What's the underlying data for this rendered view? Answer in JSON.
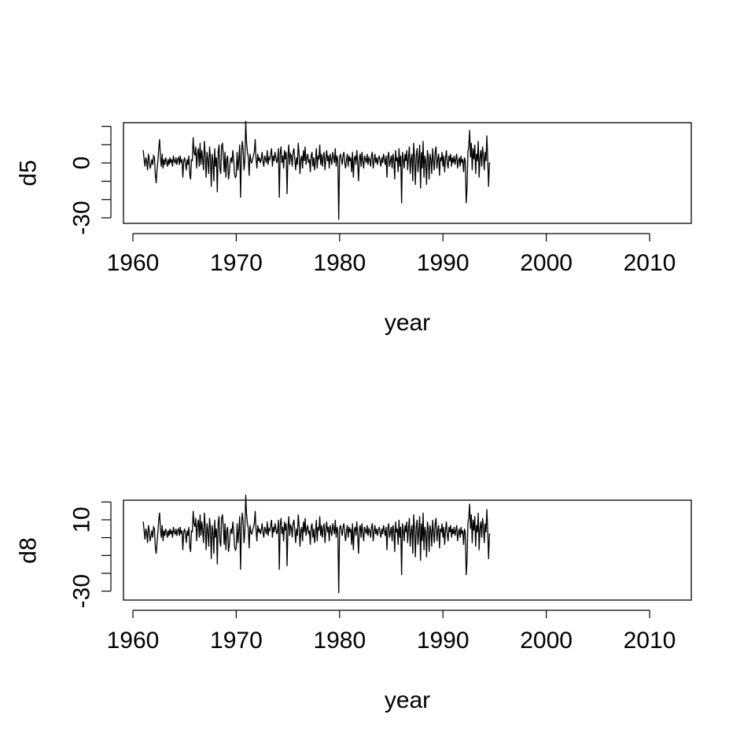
{
  "chart_data": [
    {
      "type": "line",
      "ylabel": "d5",
      "xlabel": "year",
      "xlim": [
        1961,
        2012
      ],
      "ylim": [
        -33,
        22
      ],
      "x_ticks": [
        1960,
        1970,
        1980,
        1990,
        2000,
        2010
      ],
      "y_ticks": [
        -30,
        -20,
        -10,
        0,
        10,
        20
      ],
      "y_tick_labels": [
        "-30",
        "",
        "",
        "0",
        "",
        ""
      ],
      "start_year": 1961.0,
      "step": 0.0833333,
      "values": [
        7,
        2,
        -2,
        3,
        1,
        -4,
        5,
        2,
        -3,
        -1,
        2,
        -1,
        4,
        3,
        -6,
        -11,
        -4,
        1,
        8,
        13,
        3,
        -2,
        5,
        -3,
        2,
        -1,
        3,
        1,
        -2,
        2,
        -1,
        3,
        0,
        2,
        -2,
        4,
        1,
        0,
        3,
        -1,
        2,
        3,
        -1,
        4,
        0,
        2,
        -8,
        1,
        3,
        0,
        -4,
        2,
        -1,
        4,
        -6,
        -9,
        2,
        1,
        14,
        6,
        4,
        9,
        -3,
        5,
        8,
        -2,
        11,
        -1,
        7,
        2,
        -4,
        12,
        4,
        -8,
        6,
        2,
        -6,
        9,
        3,
        -13,
        5,
        1,
        -10,
        8,
        -2,
        3,
        -16,
        6,
        10,
        -3,
        -6,
        9,
        11,
        4,
        -5,
        6,
        -8,
        2,
        4,
        -9,
        -5,
        1,
        3,
        0,
        7,
        2,
        -6,
        -8,
        -7,
        6,
        -4,
        2,
        10,
        -19,
        4,
        12,
        7,
        -4,
        1,
        23,
        11,
        6,
        3,
        -7,
        5,
        1,
        0,
        2,
        4,
        6,
        13,
        2,
        -3,
        5,
        1,
        3,
        0,
        2,
        6,
        1,
        -2,
        4,
        2,
        0,
        7,
        -1,
        3,
        2,
        5,
        8,
        -2,
        4,
        1,
        6,
        3,
        0,
        2,
        8,
        -19,
        5,
        9,
        0,
        4,
        -3,
        7,
        2,
        6,
        -17,
        3,
        10,
        -1,
        5,
        4,
        -2,
        6,
        8,
        2,
        -4,
        3,
        -1,
        11,
        5,
        -6,
        2,
        4,
        -3,
        7,
        1,
        9,
        -1,
        3,
        5,
        0,
        2,
        -5,
        4,
        6,
        -2,
        3,
        -4,
        1,
        8,
        -3,
        4,
        2,
        10,
        -1,
        5,
        -2,
        3,
        6,
        -4,
        2,
        7,
        1,
        4,
        -3,
        5,
        2,
        -1,
        6,
        3,
        0,
        8,
        -2,
        4,
        1,
        -31,
        3,
        5,
        2,
        -1,
        4,
        6,
        0,
        -3,
        2,
        5,
        -2,
        4,
        1,
        3,
        -5,
        6,
        -8,
        2,
        4,
        -1,
        7,
        0,
        -10,
        3,
        5,
        -2,
        6,
        1,
        -3,
        4,
        2,
        0,
        5,
        -1,
        3,
        2,
        -2,
        4,
        6,
        -3,
        1,
        5,
        0,
        3,
        -1,
        2,
        4,
        1,
        -2,
        3,
        0,
        5,
        2,
        -1,
        4,
        -8,
        3,
        6,
        -2,
        1,
        4,
        -3,
        5,
        2,
        -9,
        7,
        1,
        3,
        -5,
        8,
        -2,
        4,
        -22,
        6,
        2,
        -3,
        5,
        1,
        7,
        -4,
        3,
        9,
        -6,
        2,
        5,
        -10,
        11,
        3,
        -12,
        4,
        8,
        -5,
        2,
        10,
        -14,
        6,
        -3,
        12,
        -8,
        4,
        1,
        -12,
        7,
        3,
        -9,
        5,
        2,
        -6,
        8,
        1,
        -4,
        6,
        9,
        -3,
        2,
        5,
        -7,
        3,
        1,
        6,
        -2,
        4,
        -5,
        2,
        7,
        0,
        -3,
        4,
        1,
        5,
        -2,
        3,
        0,
        4,
        -1,
        2,
        5,
        -3,
        1,
        3,
        -2,
        4,
        0,
        2,
        -5,
        3,
        1,
        -22,
        -14,
        6,
        9,
        18,
        3,
        11,
        -4,
        8,
        2,
        10,
        -6,
        5,
        1,
        12,
        -8,
        3,
        7,
        -2,
        9,
        4,
        -4,
        6,
        1,
        15,
        2,
        -13,
        0,
        0
      ]
    },
    {
      "type": "line",
      "ylabel": "d8",
      "xlabel": "year",
      "xlim": [
        1961,
        2012
      ],
      "ylim": [
        -35,
        21
      ],
      "x_ticks": [
        1960,
        1970,
        1980,
        1990,
        2000,
        2010
      ],
      "y_ticks": [
        -30,
        -20,
        -10,
        0,
        10,
        20
      ],
      "y_tick_labels": [
        "-30",
        "",
        "",
        "",
        "10",
        ""
      ],
      "start_year": 1961.0,
      "step": 0.0833333,
      "values": [
        9,
        4,
        -1,
        5,
        3,
        -3,
        7,
        4,
        -2,
        1,
        4,
        0,
        6,
        5,
        -5,
        -9,
        -3,
        3,
        10,
        14,
        5,
        0,
        7,
        -2,
        4,
        1,
        5,
        3,
        0,
        4,
        1,
        5,
        2,
        4,
        0,
        6,
        3,
        2,
        5,
        1,
        4,
        5,
        1,
        6,
        2,
        4,
        -7,
        3,
        5,
        2,
        -3,
        4,
        1,
        6,
        -5,
        -8,
        4,
        3,
        15,
        8,
        6,
        11,
        -2,
        7,
        10,
        0,
        13,
        1,
        9,
        4,
        -3,
        14,
        6,
        -7,
        8,
        4,
        -5,
        11,
        5,
        -12,
        7,
        3,
        -9,
        10,
        0,
        5,
        -15,
        8,
        12,
        -2,
        -5,
        11,
        13,
        6,
        -4,
        8,
        -7,
        4,
        6,
        -8,
        -4,
        3,
        5,
        2,
        9,
        4,
        -5,
        -7,
        -6,
        8,
        -3,
        4,
        12,
        -18,
        6,
        14,
        9,
        -3,
        3,
        24,
        13,
        8,
        5,
        -6,
        7,
        3,
        2,
        4,
        6,
        8,
        15,
        4,
        -2,
        7,
        3,
        5,
        2,
        4,
        8,
        3,
        0,
        6,
        4,
        2,
        9,
        1,
        5,
        4,
        7,
        10,
        0,
        6,
        3,
        8,
        5,
        2,
        4,
        10,
        -18,
        7,
        11,
        2,
        6,
        -2,
        9,
        4,
        8,
        -16,
        5,
        12,
        1,
        7,
        6,
        0,
        8,
        10,
        4,
        -3,
        5,
        1,
        13,
        7,
        -5,
        4,
        6,
        -2,
        9,
        3,
        11,
        1,
        5,
        7,
        2,
        4,
        -4,
        6,
        8,
        0,
        5,
        -3,
        3,
        10,
        -2,
        6,
        4,
        12,
        1,
        7,
        0,
        5,
        8,
        -3,
        4,
        9,
        3,
        6,
        -2,
        7,
        4,
        1,
        8,
        5,
        2,
        10,
        0,
        6,
        3,
        -31,
        5,
        7,
        4,
        1,
        6,
        8,
        2,
        -2,
        4,
        7,
        0,
        6,
        3,
        5,
        -4,
        8,
        -7,
        4,
        6,
        1,
        9,
        2,
        -9,
        5,
        7,
        0,
        8,
        3,
        -2,
        6,
        4,
        2,
        7,
        1,
        5,
        4,
        0,
        6,
        8,
        -2,
        3,
        7,
        2,
        5,
        1,
        4,
        6,
        3,
        0,
        5,
        2,
        7,
        4,
        1,
        6,
        -7,
        5,
        8,
        0,
        3,
        6,
        -2,
        7,
        4,
        -8,
        9,
        3,
        5,
        -4,
        10,
        0,
        6,
        -21,
        8,
        4,
        -2,
        7,
        3,
        9,
        -3,
        5,
        11,
        -5,
        4,
        7,
        -9,
        13,
        5,
        -11,
        6,
        10,
        -4,
        4,
        12,
        -13,
        8,
        -2,
        14,
        -7,
        6,
        3,
        -11,
        9,
        5,
        -8,
        7,
        4,
        -5,
        10,
        3,
        -3,
        8,
        11,
        -2,
        4,
        7,
        -6,
        5,
        3,
        8,
        0,
        6,
        -4,
        4,
        9,
        2,
        -2,
        6,
        3,
        7,
        0,
        5,
        2,
        6,
        1,
        4,
        7,
        -2,
        3,
        5,
        0,
        6,
        2,
        4,
        -4,
        5,
        3,
        -21,
        -13,
        8,
        11,
        19,
        5,
        13,
        -3,
        10,
        4,
        12,
        -5,
        7,
        3,
        14,
        -7,
        5,
        9,
        0,
        11,
        6,
        -3,
        8,
        3,
        16,
        4,
        -12,
        2,
        2
      ]
    }
  ]
}
